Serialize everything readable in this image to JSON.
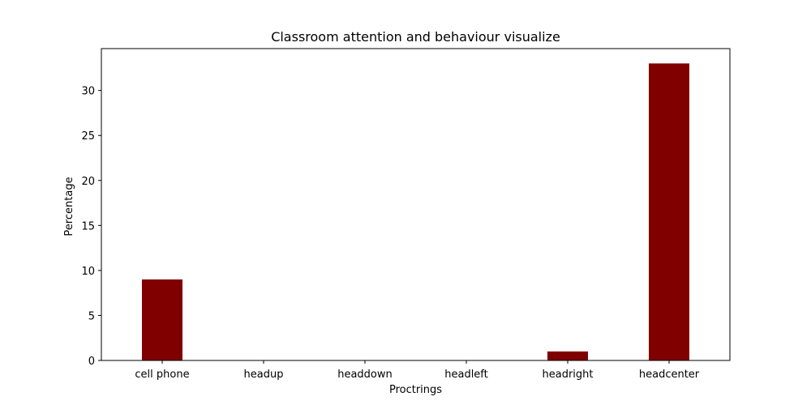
{
  "chart_data": {
    "type": "bar",
    "title": "Classroom attention and behaviour visualize",
    "xlabel": "Proctrings",
    "ylabel": "Percentage",
    "categories": [
      "cell phone",
      "headup",
      "headdown",
      "headleft",
      "headright",
      "headcenter"
    ],
    "values": [
      9,
      0,
      0,
      0,
      1,
      33
    ],
    "ylim": [
      0,
      34.65
    ],
    "yticks": [
      0,
      5,
      10,
      15,
      20,
      25,
      30
    ],
    "bar_color": "#800000",
    "grid": false,
    "legend": "none"
  }
}
